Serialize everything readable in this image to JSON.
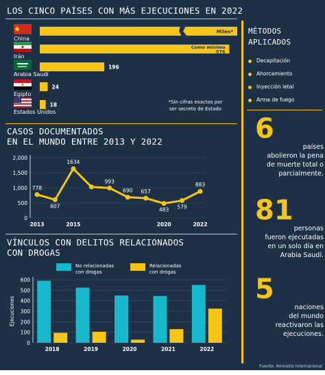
{
  "section1": {
    "title": "LOS CINCO PAÍSES CON MÁS EJECUCIONES EN 2022"
  },
  "countries": [
    {
      "name": "China",
      "label": "Miles*",
      "value": null
    },
    {
      "name": "Irán",
      "label": "Como mínimo 576",
      "value": 576
    },
    {
      "name": "Arabia Saudí",
      "label": "196",
      "value": 196
    },
    {
      "name": "Egipto",
      "label": "24",
      "value": 24
    },
    {
      "name": "Estados Unidos",
      "label": "18",
      "value": 18
    }
  ],
  "countries_note": "*Sin cifras exactos por\nser secreto de Estado",
  "methods": {
    "title": "MÉTODOS\nAPLICADOS",
    "items": [
      "Decapitación",
      "Ahorcamiento",
      "Inyección letal",
      "Arma de fuego"
    ]
  },
  "stats": [
    {
      "number": "6",
      "text": "países\nabolieron la pena\nde muerte total o\nparcialmente."
    },
    {
      "number": "81",
      "text": "personas\nfueron ejecutadas\nen un solo día en\nArabia Saudí."
    },
    {
      "number": "5",
      "text": "naciones\ndel mundo\nreactivaron las\nejecuciones."
    }
  ],
  "section2": {
    "title": "CASOS DOCUMENTADOS\nEN EL MUNDO ENTRE 2013 Y 2022"
  },
  "section3": {
    "title": "VÍNCULOS CON DELITOS RELACIONADOS\nCON DROGAS"
  },
  "source": "Fuente: Amnistía Internacional",
  "colors": {
    "background": "#1d3046",
    "yellow": "#f5c518",
    "cyan": "#18b8cc"
  },
  "chart_data": [
    {
      "type": "bar",
      "orientation": "horizontal",
      "title": "LOS CINCO PAÍSES CON MÁS EJECUCIONES EN 2022",
      "categories": [
        "China",
        "Irán",
        "Arabia Saudí",
        "Egipto",
        "Estados Unidos"
      ],
      "values": [
        null,
        576,
        196,
        24,
        18
      ],
      "data_labels": [
        "Miles*",
        "Como mínimo 576",
        "196",
        "24",
        "18"
      ]
    },
    {
      "type": "line",
      "title": "CASOS DOCUMENTADOS EN EL MUNDO ENTRE 2013 Y 2022",
      "x": [
        2013,
        2014,
        2015,
        2016,
        2017,
        2018,
        2019,
        2020,
        2021,
        2022
      ],
      "values": [
        778,
        607,
        1634,
        1032,
        993,
        690,
        657,
        483,
        579,
        883
      ],
      "data_labels": [
        "778",
        "607",
        "1634",
        "",
        "993",
        "690",
        "657",
        "483",
        "579",
        "883"
      ],
      "x_tick_labels": [
        "2013",
        "2015",
        "2020",
        "2022"
      ],
      "y_ticks": [
        "0",
        "500",
        "1,000",
        "1,500",
        "2,000"
      ],
      "ylim": [
        0,
        2000
      ]
    },
    {
      "type": "bar",
      "title": "VÍNCULOS CON DELITOS RELACIONADOS CON DROGAS",
      "categories": [
        "2018",
        "2019",
        "2020",
        "2021",
        "2022"
      ],
      "series": [
        {
          "name": "No relacionadas con drogas",
          "values": [
            590,
            525,
            450,
            445,
            550
          ]
        },
        {
          "name": "Relacionadas con drogas",
          "values": [
            95,
            105,
            30,
            130,
            325
          ]
        }
      ],
      "ylabel": "Ejecuciones",
      "y_ticks": [
        "0",
        "100",
        "200",
        "300",
        "400",
        "500",
        "600"
      ],
      "ylim": [
        0,
        600
      ],
      "legend": "top"
    }
  ]
}
